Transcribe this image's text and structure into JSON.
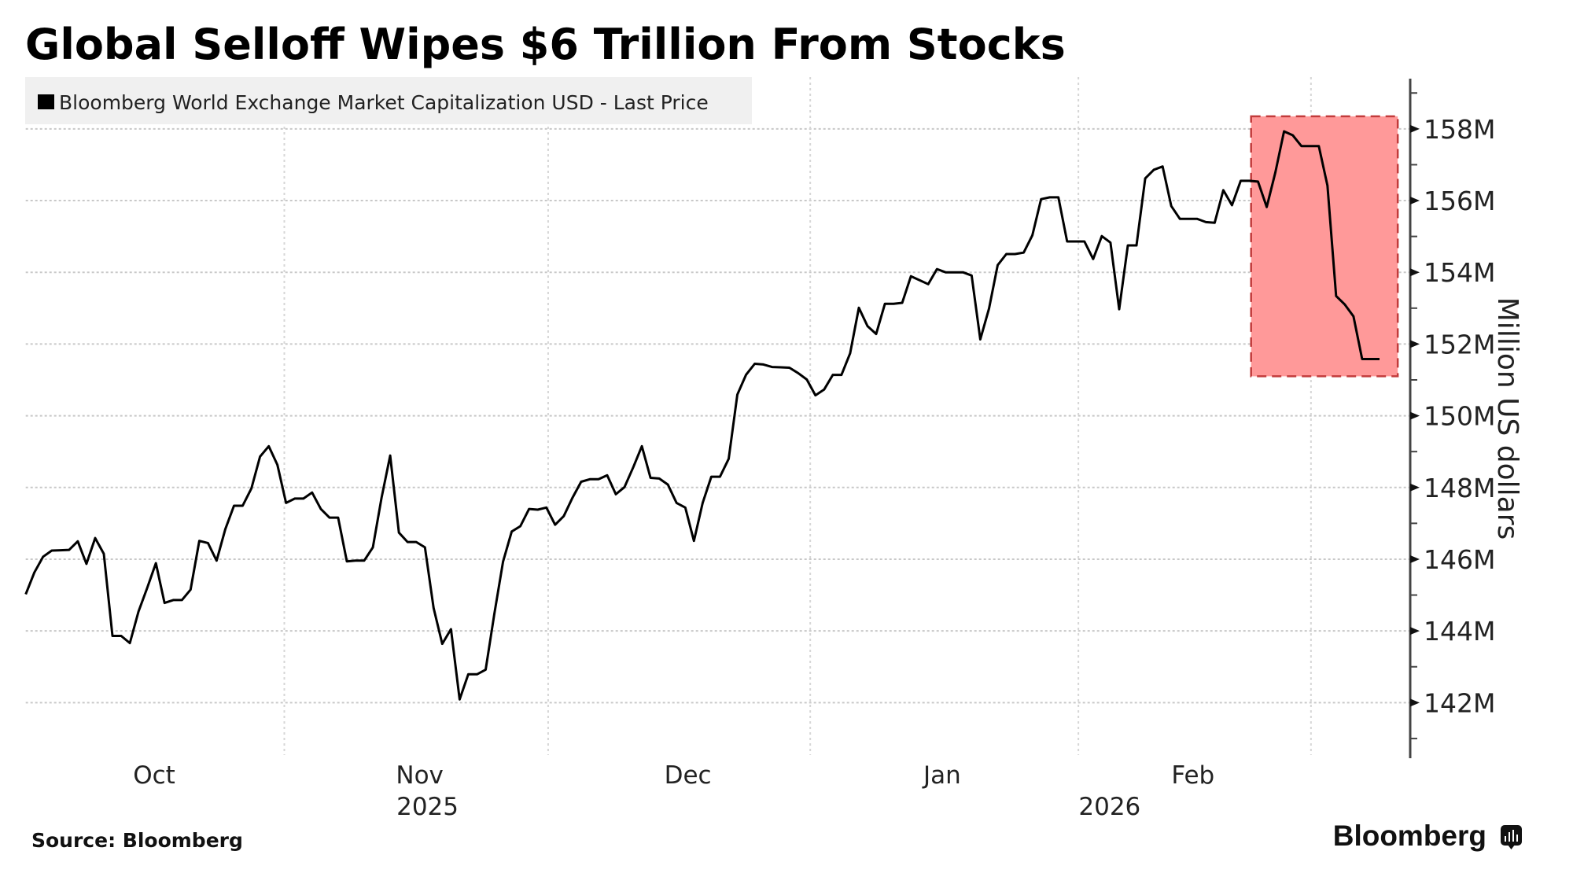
{
  "chart_data": {
    "type": "line",
    "title": "Global Selloff Wipes $6 Trillion From Stocks",
    "legend": [
      {
        "label": "Bloomberg World Exchange Market Capitalization USD - Last Price",
        "color": "#000000"
      }
    ],
    "legend_placement": "top-left",
    "xlabel": "",
    "ylabel": "Million US dollars",
    "x_unit": "trading day index",
    "x_tick_labels": [
      {
        "label": "Oct",
        "day_index": 14.8
      },
      {
        "label": "Nov",
        "day_index": 45.4
      },
      {
        "label": "Dec",
        "day_index": 76.3
      },
      {
        "label": "Jan",
        "day_index": 105.6
      },
      {
        "label": "Feb",
        "day_index": 134.5
      }
    ],
    "x_year_labels": [
      {
        "label": "2025",
        "day_index": 46.3
      },
      {
        "label": "2026",
        "day_index": 124.9
      }
    ],
    "x_gridlines_day_index": [
      29.8,
      60.2,
      90.4,
      121.3,
      148.1
    ],
    "y_ticks": [
      142,
      144,
      146,
      148,
      150,
      152,
      154,
      156,
      158
    ],
    "y_tick_labels": [
      "142M",
      "144M",
      "146M",
      "148M",
      "150M",
      "152M",
      "154M",
      "156M",
      "158M"
    ],
    "y_minor_ticks": [
      141,
      143,
      145,
      147,
      149,
      151,
      153,
      155,
      157,
      159
    ],
    "ylim": [
      140.45,
      159.4
    ],
    "xlim": [
      0,
      157.3
    ],
    "grid": true,
    "y_axis_side": "right",
    "series": [
      {
        "name": "Bloomberg World Exchange Market Capitalization USD - Last Price",
        "color": "#000000",
        "values": [
          145.02,
          145.63,
          146.07,
          146.24,
          146.25,
          146.26,
          146.5,
          145.87,
          146.59,
          146.15,
          143.86,
          143.86,
          143.66,
          144.54,
          145.2,
          145.89,
          144.78,
          144.86,
          144.86,
          145.15,
          146.51,
          146.45,
          145.96,
          146.84,
          147.49,
          147.49,
          147.97,
          148.86,
          149.15,
          148.63,
          147.57,
          147.69,
          147.69,
          147.86,
          147.4,
          147.16,
          147.16,
          145.94,
          145.96,
          145.96,
          146.33,
          147.71,
          148.89,
          146.74,
          146.48,
          146.48,
          146.33,
          144.64,
          143.64,
          144.05,
          142.09,
          142.79,
          142.79,
          142.92,
          144.47,
          145.93,
          146.77,
          146.92,
          147.4,
          147.38,
          147.44,
          146.96,
          147.2,
          147.71,
          148.16,
          148.23,
          148.23,
          148.34,
          147.81,
          148.01,
          148.56,
          149.15,
          148.27,
          148.25,
          148.08,
          147.57,
          147.44,
          146.51,
          147.57,
          148.3,
          148.3,
          148.8,
          150.59,
          151.14,
          151.45,
          151.43,
          151.36,
          151.35,
          151.34,
          151.19,
          151.01,
          150.57,
          150.73,
          151.14,
          151.14,
          151.74,
          153.01,
          152.5,
          152.28,
          153.12,
          153.12,
          153.15,
          153.89,
          153.78,
          153.67,
          154.09,
          154.0,
          154.0,
          154.0,
          153.91,
          152.13,
          152.99,
          154.2,
          154.51,
          154.51,
          154.55,
          155.03,
          156.04,
          156.09,
          156.09,
          154.86,
          154.86,
          154.86,
          154.37,
          155.01,
          154.83,
          152.97,
          154.75,
          154.75,
          156.62,
          156.86,
          156.95,
          155.85,
          155.49,
          155.49,
          155.49,
          155.4,
          155.38,
          156.29,
          155.87,
          156.55,
          156.55,
          156.53,
          155.82,
          156.79,
          157.93,
          157.82,
          157.52,
          157.52,
          157.52,
          156.42,
          153.34,
          153.1,
          152.77,
          151.58,
          151.58,
          151.58
        ]
      }
    ],
    "annotations": [
      {
        "type": "highlight-box",
        "description": "Selloff period",
        "x_range_day_index": [
          141.2,
          158.1
        ],
        "y_range": [
          151.1,
          158.35
        ],
        "fill_color": "#ff9999",
        "border_color": "#c23b3b"
      }
    ],
    "source": "Source: Bloomberg",
    "brand": "Bloomberg"
  }
}
